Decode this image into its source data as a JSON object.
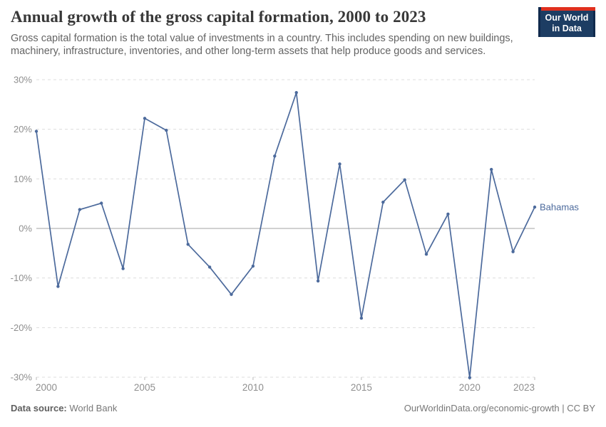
{
  "header": {
    "title": "Annual growth of the gross capital formation, 2000 to 2023",
    "subtitle": "Gross capital formation is the total value of investments in a country. This includes spending on new buildings, machinery, infrastructure, inventories, and other long-term assets that help produce goods and services.",
    "logo": {
      "line1": "Our World",
      "line2": "in Data"
    }
  },
  "chart_data": {
    "type": "line",
    "title": "Annual growth of the gross capital formation, 2000 to 2023",
    "x": [
      2000,
      2001,
      2002,
      2003,
      2004,
      2005,
      2006,
      2007,
      2008,
      2009,
      2010,
      2011,
      2012,
      2013,
      2014,
      2015,
      2016,
      2017,
      2018,
      2019,
      2020,
      2021,
      2022,
      2023
    ],
    "series": [
      {
        "name": "Bahamas",
        "color": "#4c6a9c",
        "values": [
          19.6,
          -11.7,
          3.8,
          5.1,
          -8.1,
          22.2,
          19.8,
          -3.2,
          -7.8,
          -13.3,
          -7.6,
          14.6,
          27.4,
          -10.6,
          13.0,
          -18.1,
          5.3,
          9.8,
          -5.2,
          2.9,
          -30.1,
          11.9,
          -4.7,
          4.3
        ]
      }
    ],
    "xlabel": "",
    "ylabel": "",
    "xlim": [
      2000,
      2023
    ],
    "ylim": [
      -30,
      30
    ],
    "xticks": [
      2000,
      2005,
      2010,
      2015,
      2020,
      2023
    ],
    "yticks": [
      -30,
      -20,
      -10,
      0,
      10,
      20,
      30
    ],
    "ytick_suffix": "%",
    "grid": "horizontal-dashed",
    "legend_position": "end-of-line-label",
    "end_label": "Bahamas"
  },
  "footer": {
    "datasource_label": "Data source:",
    "datasource_value": " World Bank",
    "credit": "OurWorldinData.org/economic-growth | CC BY"
  },
  "colors": {
    "line": "#4c6a9c",
    "grid": "#dddddd",
    "zero_line": "#a3a3a3",
    "tick_text": "#8f8f8f",
    "tick_mark": "#bbbbbb",
    "logo_bg": "#1d3d63",
    "logo_stripe": "#e0301e"
  }
}
